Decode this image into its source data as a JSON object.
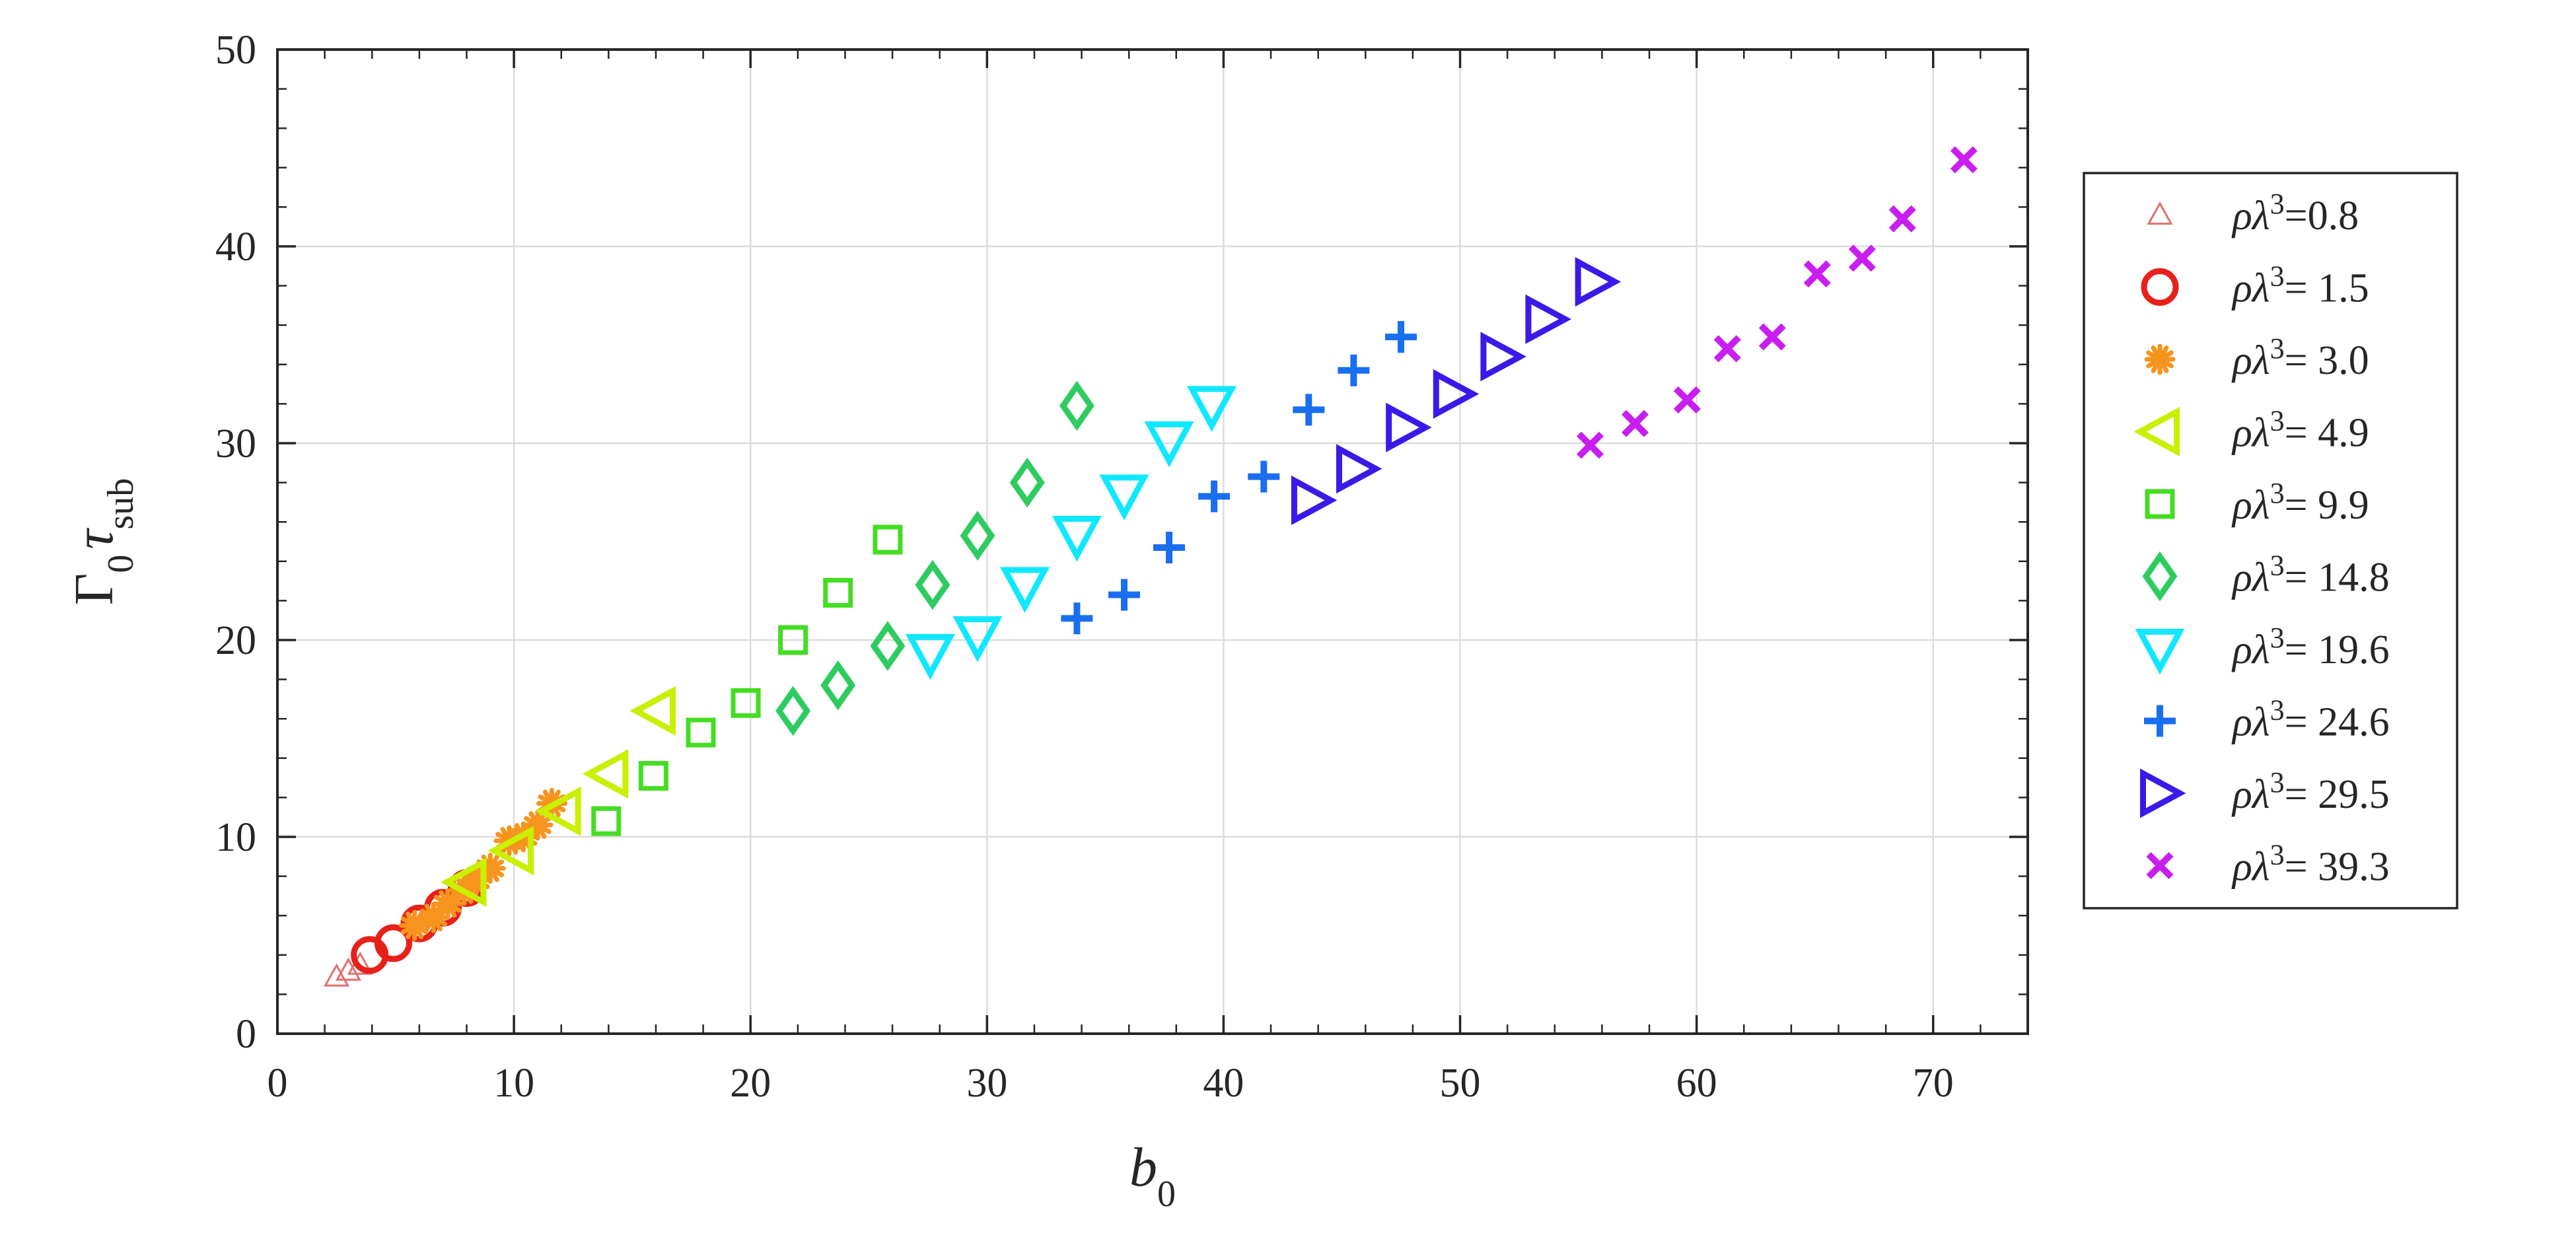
{
  "chart_data": {
    "type": "scatter",
    "xlabel": "b0",
    "ylabel": "Γ0τsub",
    "xlim": [
      0,
      74
    ],
    "ylim": [
      0,
      50
    ],
    "xticks": [
      0,
      10,
      20,
      30,
      40,
      50,
      60,
      70
    ],
    "yticks": [
      0,
      10,
      20,
      30,
      40,
      50
    ],
    "grid": true,
    "legend_placement": "right-outside",
    "series": [
      {
        "name": "ρλ3=0.8",
        "label_prefix": "ρλ",
        "label_sup": "3",
        "label_value": "=0.8",
        "marker": "triangle-up-thin",
        "color": "#e07070",
        "x": [
          2.5,
          3.0,
          3.5
        ],
        "y": [
          2.9,
          3.2,
          3.5
        ]
      },
      {
        "name": "ρλ3= 1.5",
        "label_prefix": "ρλ",
        "label_sup": "3",
        "label_value": "= 1.5",
        "marker": "circle",
        "color": "#e8201a",
        "x": [
          3.9,
          4.9,
          6.0,
          7.0,
          8.0
        ],
        "y": [
          4.0,
          4.6,
          5.6,
          6.4,
          7.4
        ]
      },
      {
        "name": "ρλ3= 3.0",
        "label_prefix": "ρλ",
        "label_sup": "3",
        "label_value": "= 3.0",
        "marker": "asterisk",
        "color": "#f7941d",
        "x": [
          5.8,
          6.6,
          7.2,
          7.9,
          8.4,
          9.0,
          9.8,
          10.4,
          11.0,
          11.6
        ],
        "y": [
          5.5,
          5.9,
          6.6,
          7.3,
          7.8,
          8.4,
          9.8,
          10.0,
          10.6,
          11.7
        ]
      },
      {
        "name": "ρλ3= 4.9",
        "label_prefix": "ρλ",
        "label_sup": "3",
        "label_value": "= 4.9",
        "marker": "triangle-left",
        "color": "#c8f000",
        "x": [
          8.0,
          10.0,
          12.0,
          14.0,
          16.0
        ],
        "y": [
          7.7,
          9.3,
          11.3,
          13.2,
          16.4
        ]
      },
      {
        "name": "ρλ3= 9.9",
        "label_prefix": "ρλ",
        "label_sup": "3",
        "label_value": "= 9.9",
        "marker": "square",
        "color": "#44dd22",
        "x": [
          13.9,
          15.9,
          17.9,
          19.8,
          21.8,
          23.7,
          25.8
        ],
        "y": [
          10.8,
          13.1,
          15.3,
          16.8,
          20.0,
          22.4,
          25.1
        ]
      },
      {
        "name": "ρλ3= 14.8",
        "label_prefix": "ρλ",
        "label_sup": "3",
        "label_value": "= 14.8",
        "marker": "diamond",
        "color": "#2ecc60",
        "x": [
          21.8,
          23.7,
          25.8,
          27.7,
          29.6,
          31.7,
          33.8
        ],
        "y": [
          16.4,
          17.7,
          19.7,
          22.8,
          25.3,
          28.0,
          31.9
        ]
      },
      {
        "name": "ρλ3= 19.6",
        "label_prefix": "ρλ",
        "label_sup": "3",
        "label_value": "= 19.6",
        "marker": "triangle-down",
        "color": "#10e8ff",
        "x": [
          27.6,
          29.6,
          31.6,
          33.8,
          35.8,
          37.7,
          39.5
        ],
        "y": [
          19.3,
          20.2,
          22.7,
          25.3,
          27.4,
          30.1,
          31.9
        ]
      },
      {
        "name": "ρλ3= 24.6",
        "label_prefix": "ρλ",
        "label_sup": "3",
        "label_value": "= 24.6",
        "marker": "plus",
        "color": "#1a6ef0",
        "x": [
          33.8,
          35.8,
          37.7,
          39.6,
          41.7,
          43.6,
          45.5,
          47.5
        ],
        "y": [
          21.1,
          22.3,
          24.7,
          27.3,
          28.3,
          31.7,
          33.7,
          35.4
        ]
      },
      {
        "name": "ρλ3= 29.5",
        "label_prefix": "ρλ",
        "label_sup": "3",
        "label_value": "= 29.5",
        "marker": "triangle-right",
        "color": "#3a1ae8",
        "x": [
          43.7,
          45.6,
          47.7,
          49.7,
          51.7,
          53.6,
          55.7
        ],
        "y": [
          27.1,
          28.7,
          30.8,
          32.5,
          34.4,
          36.3,
          38.2
        ]
      },
      {
        "name": "ρλ3= 39.3",
        "label_prefix": "ρλ",
        "label_sup": "3",
        "label_value": "= 39.3",
        "marker": "cross",
        "color": "#c81ef0",
        "x": [
          55.5,
          57.4,
          59.6,
          61.3,
          63.2,
          65.1,
          67.0,
          68.7,
          71.3
        ],
        "y": [
          29.9,
          31.0,
          32.2,
          34.8,
          35.4,
          38.6,
          39.4,
          41.4,
          44.4
        ]
      }
    ]
  }
}
